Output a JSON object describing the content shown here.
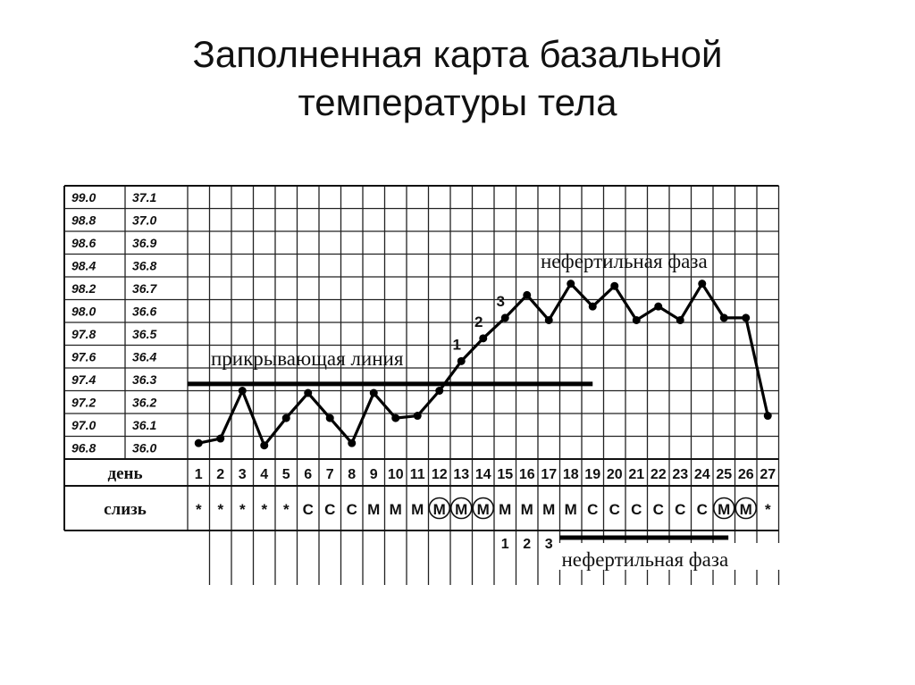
{
  "slide": {
    "title_line1": "Заполненная карта базальной",
    "title_line2": "температуры тела"
  },
  "chart_data": {
    "type": "line",
    "title": "Заполненная карта базальной температуры тела",
    "y_fahrenheit_ticks": [
      "96.8",
      "97.0",
      "97.2",
      "97.4",
      "97.6",
      "97.8",
      "98.0",
      "98.2",
      "98.4",
      "98.6",
      "98.8",
      "99.0"
    ],
    "y_celsius_ticks": [
      "36.0",
      "36.1",
      "36.2",
      "36.3",
      "36.4",
      "36.5",
      "36.6",
      "36.7",
      "36.8",
      "36.9",
      "37.0",
      "37.1"
    ],
    "ylim_celsius": [
      36.0,
      37.1
    ],
    "x_row_label": "день",
    "days": [
      1,
      2,
      3,
      4,
      5,
      6,
      7,
      8,
      9,
      10,
      11,
      12,
      13,
      14,
      15,
      16,
      17,
      18,
      19,
      20,
      21,
      22,
      23,
      24,
      25,
      26,
      27
    ],
    "series": [
      {
        "values": [
          36.02,
          36.04,
          36.25,
          36.01,
          36.13,
          36.24,
          36.13,
          36.02,
          36.24,
          36.13,
          36.14,
          36.25,
          36.38,
          36.48,
          36.57,
          36.67,
          36.56,
          36.72,
          36.62,
          36.71,
          36.56,
          36.62,
          36.56,
          36.72,
          36.57,
          36.57,
          36.14
        ]
      }
    ],
    "mucus_row_label": "слизь",
    "mucus": [
      "*",
      "*",
      "*",
      "*",
      "*",
      "С",
      "С",
      "С",
      "М",
      "М",
      "М",
      "М",
      "М",
      "М",
      "М",
      "М",
      "М",
      "М",
      "С",
      "С",
      "С",
      "С",
      "С",
      "С",
      "М",
      "М",
      "*"
    ],
    "mucus_circled_days": [
      12,
      13,
      14,
      25,
      26
    ],
    "cover_line": {
      "label": "прикрывающая линия",
      "value_celsius": 36.28,
      "from_day": 1,
      "to_day": 19
    },
    "rise_day_labels": [
      {
        "day": 13,
        "label": "1"
      },
      {
        "day": 14,
        "label": "2"
      },
      {
        "day": 15,
        "label": "3"
      }
    ],
    "post_peak_day_labels": [
      {
        "day": 15,
        "label": "1"
      },
      {
        "day": 16,
        "label": "2"
      },
      {
        "day": 17,
        "label": "3"
      }
    ],
    "infertile_phase_top": "нефертильная фаза",
    "infertile_phase_bottom": "нефертильная фаза",
    "infertile_bar_days": [
      18,
      25
    ],
    "grid": true
  }
}
